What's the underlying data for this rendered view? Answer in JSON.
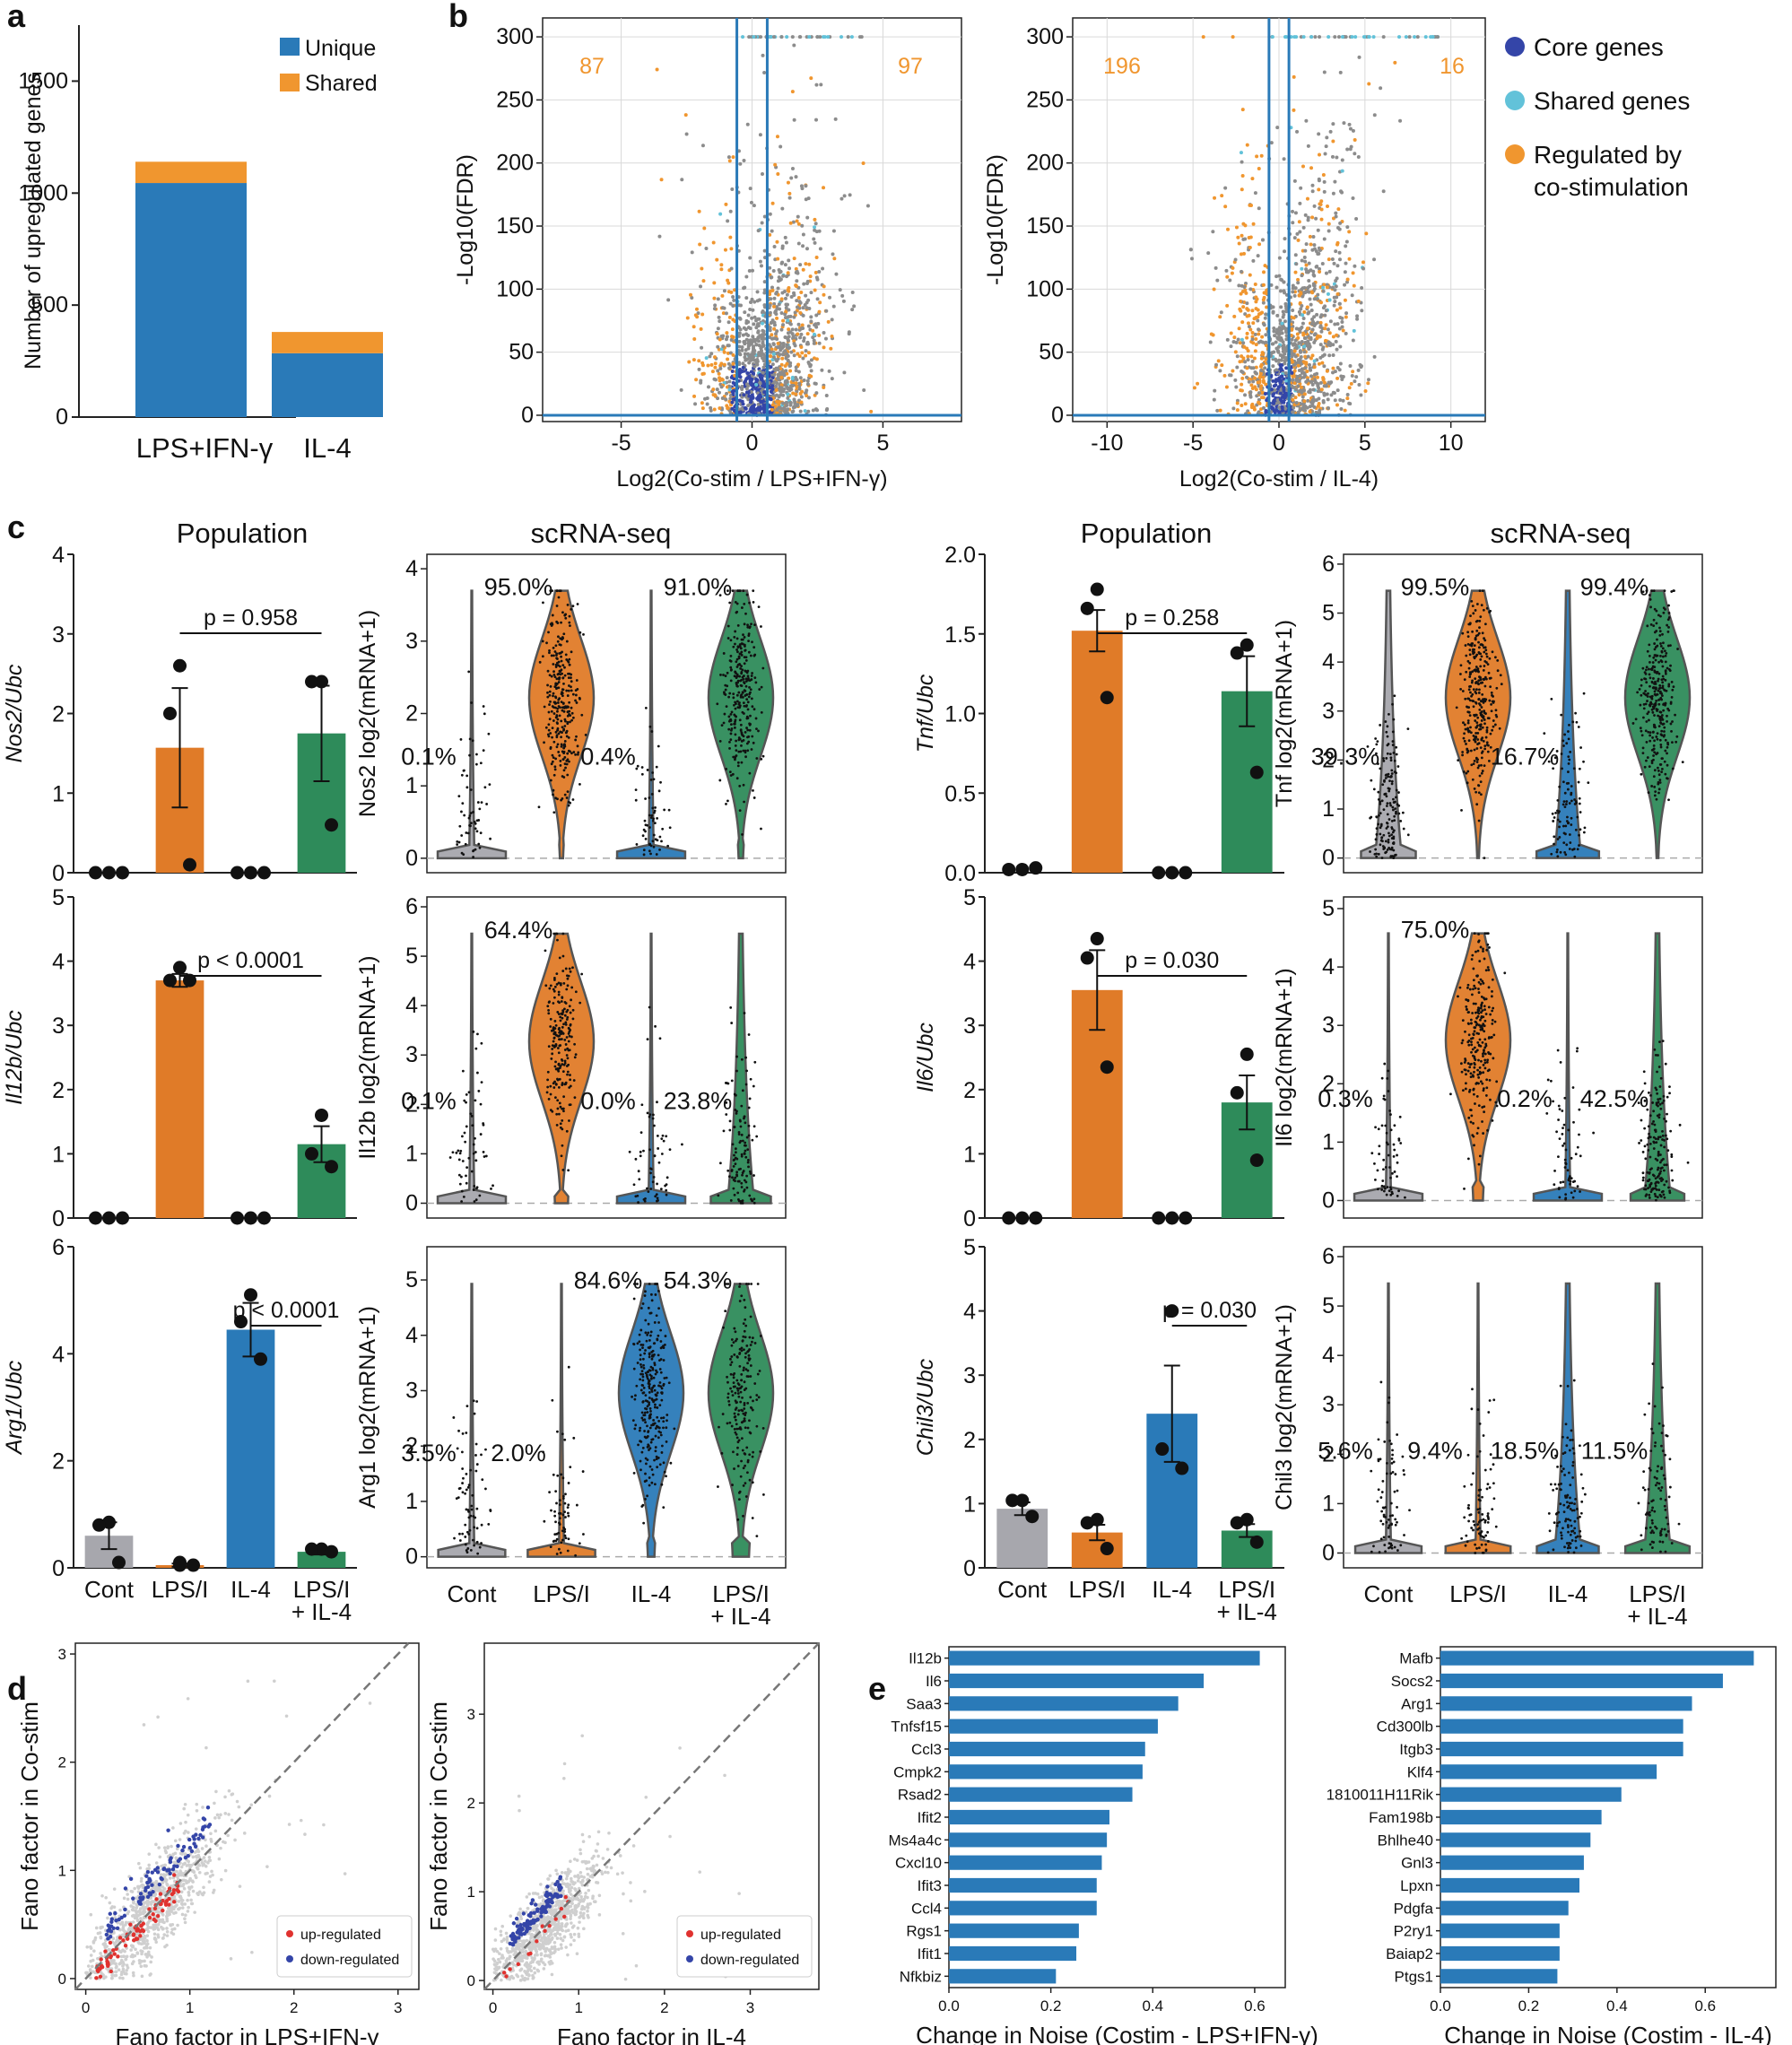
{
  "panel_labels": [
    "a",
    "b",
    "c",
    "d",
    "e"
  ],
  "colors": {
    "blue": "#2a7ab8",
    "orange": "#f0962f",
    "bar_orange": "#e07b28",
    "green": "#2e8b5a",
    "gray": "#a7a7ad",
    "teal": "#62c2d9",
    "navy": "#3445a8",
    "red": "#e0322f",
    "line_blue": "#2a7ab8"
  },
  "chart_data": [
    {
      "id": "a",
      "type": "bar",
      "stacked": true,
      "categories": [
        "LPS+IFN-γ",
        "IL-4"
      ],
      "series": [
        {
          "name": "Unique",
          "values": [
            1045,
            285
          ]
        },
        {
          "name": "Shared",
          "values": [
            95,
            95
          ]
        }
      ],
      "ylabel": "Number of upregulated genes",
      "ylim": [
        0,
        1750
      ],
      "yticks": [
        "0",
        "500",
        "1000",
        "1500"
      ],
      "legend": [
        "Unique",
        "Shared"
      ]
    },
    {
      "id": "b1",
      "type": "scatter",
      "xlabel": "Log2(Co-stim / LPS+IFN-γ)",
      "ylabel": "-Log10(FDR)",
      "xlim": [
        -8,
        8
      ],
      "ylim": [
        -5,
        315
      ],
      "xticks": [
        "-5",
        "0",
        "5"
      ],
      "yticks": [
        "0",
        "50",
        "100",
        "150",
        "200",
        "250",
        "300"
      ],
      "count_left": "87",
      "count_right": "97",
      "thresholds": [
        -0.58,
        0.58
      ]
    },
    {
      "id": "b2",
      "type": "scatter",
      "xlabel": "Log2(Co-stim / IL-4)",
      "ylabel": "-Log10(FDR)",
      "xlim": [
        -12,
        12
      ],
      "ylim": [
        -5,
        315
      ],
      "xticks": [
        "-10",
        "-5",
        "0",
        "5",
        "10"
      ],
      "yticks": [
        "0",
        "50",
        "100",
        "150",
        "200",
        "250",
        "300"
      ],
      "count_left": "196",
      "count_right": "16",
      "legend": [
        "Core genes",
        "Shared genes",
        "Regulated by",
        "co-stimulation"
      ]
    },
    {
      "id": "c",
      "type": "bar",
      "titles": [
        "Population",
        "scRNA-seq",
        "Population",
        "scRNA-seq"
      ],
      "categories": [
        "Cont",
        "LPS/I",
        "IL-4",
        "LPS/I",
        "+ IL-4"
      ],
      "population": [
        {
          "gene": "Nos2",
          "label": "Nos2/Ubc",
          "means": [
            0,
            1.57,
            0,
            1.75
          ],
          "sem": [
            0,
            0.75,
            0,
            0.6
          ],
          "points": [
            [
              0,
              0,
              0
            ],
            [
              2.6,
              2.0,
              0.1
            ],
            [
              0,
              0,
              0
            ],
            [
              2.4,
              2.4,
              0.6
            ]
          ],
          "ylim": [
            0,
            4
          ],
          "yticks": [
            "0",
            "1",
            "2",
            "3",
            "4"
          ],
          "pval": "p = 0.958",
          "pair": [
            1,
            3
          ]
        },
        {
          "gene": "Il12b",
          "label": "Il12b/Ubc",
          "means": [
            0,
            3.7,
            0,
            1.15
          ],
          "sem": [
            0,
            0.1,
            0,
            0.28
          ],
          "points": [
            [
              0,
              0,
              0
            ],
            [
              3.9,
              3.7,
              3.7
            ],
            [
              0,
              0,
              0
            ],
            [
              1.6,
              1.0,
              0.8
            ]
          ],
          "ylim": [
            0,
            5
          ],
          "yticks": [
            "0",
            "1",
            "2",
            "3",
            "4",
            "5"
          ],
          "pval": "p < 0.0001",
          "pair": [
            1,
            3
          ]
        },
        {
          "gene": "Arg1",
          "label": "Arg1/Ubc",
          "means": [
            0.6,
            0.05,
            4.45,
            0.3
          ],
          "sem": [
            0.25,
            0.03,
            0.5,
            0.05
          ],
          "points": [
            [
              0.85,
              0.8,
              0.1
            ],
            [
              0.1,
              0.05,
              0.05
            ],
            [
              5.1,
              4.6,
              3.9
            ],
            [
              0.35,
              0.35,
              0.3
            ]
          ],
          "ylim": [
            0,
            6
          ],
          "yticks": [
            "0",
            "2",
            "4",
            "6"
          ],
          "pval": "p < 0.0001",
          "pair": [
            2,
            3
          ]
        },
        {
          "gene": "Tnf",
          "label": "Tnf/Ubc",
          "means": [
            0,
            1.52,
            0,
            1.14
          ],
          "sem": [
            0,
            0.13,
            0,
            0.22
          ],
          "points": [
            [
              0.02,
              0.02,
              0.03
            ],
            [
              1.78,
              1.66,
              1.1
            ],
            [
              0,
              0,
              0
            ],
            [
              1.43,
              1.38,
              0.63
            ]
          ],
          "ylim": [
            0,
            2
          ],
          "yticks": [
            "0.0",
            "0.5",
            "1.0",
            "1.5",
            "2.0"
          ],
          "pval": "p = 0.258",
          "pair": [
            1,
            3
          ]
        },
        {
          "gene": "Il6",
          "label": "Il6/Ubc",
          "means": [
            0,
            3.55,
            0,
            1.8
          ],
          "sem": [
            0,
            0.62,
            0,
            0.42
          ],
          "points": [
            [
              0,
              0,
              0
            ],
            [
              4.35,
              4.05,
              2.35
            ],
            [
              0,
              0,
              0
            ],
            [
              2.55,
              1.95,
              0.9
            ]
          ],
          "ylim": [
            0,
            5
          ],
          "yticks": [
            "0",
            "1",
            "2",
            "3",
            "4",
            "5"
          ],
          "pval": "p = 0.030",
          "pair": [
            1,
            3
          ]
        },
        {
          "gene": "Chil3",
          "label": "Chil3/Ubc",
          "means": [
            0.92,
            0.55,
            2.4,
            0.58
          ],
          "sem": [
            0.1,
            0.12,
            0.75,
            0.1
          ],
          "points": [
            [
              1.05,
              1.05,
              0.8
            ],
            [
              0.75,
              0.7,
              0.3
            ],
            [
              4.0,
              1.85,
              1.55
            ],
            [
              0.75,
              0.7,
              0.4
            ]
          ],
          "ylim": [
            0,
            5
          ],
          "yticks": [
            "0",
            "1",
            "2",
            "3",
            "4",
            "5"
          ],
          "pval": "p = 0.030",
          "pair": [
            2,
            3
          ]
        }
      ],
      "violins": [
        {
          "gene": "Nos2",
          "label": "Nos2 log2(mRNA+1)",
          "pcts": [
            "0.1%",
            "95.0%",
            "0.4%",
            "91.0%"
          ],
          "ylim": [
            -0.2,
            4.2
          ],
          "yticks": [
            "0",
            "1",
            "2",
            "3",
            "4"
          ]
        },
        {
          "gene": "Il12b",
          "label": "Il12b log2(mRNA+1)",
          "pcts": [
            "0.1%",
            "64.4%",
            "0.0%",
            "23.8%"
          ],
          "ylim": [
            -0.3,
            6.2
          ],
          "yticks": [
            "0",
            "1",
            "2",
            "3",
            "4",
            "5",
            "6"
          ]
        },
        {
          "gene": "Arg1",
          "label": "Arg1 log2(mRNA+1)",
          "pcts": [
            "3.5%",
            "2.0%",
            "84.6%",
            "54.3%"
          ],
          "ylim": [
            -0.2,
            5.6
          ],
          "yticks": [
            "0",
            "1",
            "2",
            "3",
            "4",
            "5"
          ]
        },
        {
          "gene": "Tnf",
          "label": "Tnf log2(mRNA+1)",
          "pcts": [
            "39.3%",
            "99.5%",
            "16.7%",
            "99.4%"
          ],
          "ylim": [
            -0.3,
            6.2
          ],
          "yticks": [
            "0",
            "1",
            "2",
            "3",
            "4",
            "5",
            "6"
          ]
        },
        {
          "gene": "Il6",
          "label": "Il6 log2(mRNA+1)",
          "pcts": [
            "0.3%",
            "75.0%",
            "0.2%",
            "42.5%"
          ],
          "ylim": [
            -0.3,
            5.2
          ],
          "yticks": [
            "0",
            "1",
            "2",
            "3",
            "4",
            "5"
          ]
        },
        {
          "gene": "Chil3",
          "label": "Chil3 log2(mRNA+1)",
          "pcts": [
            "5.6%",
            "9.4%",
            "18.5%",
            "11.5%"
          ],
          "ylim": [
            -0.3,
            6.2
          ],
          "yticks": [
            "0",
            "1",
            "2",
            "3",
            "4",
            "5",
            "6"
          ]
        }
      ]
    },
    {
      "id": "d1",
      "type": "scatter",
      "xlabel": "Fano factor in LPS+IFN-γ",
      "ylabel": "Fano factor in Co-stim",
      "xlim": [
        -0.1,
        3.2
      ],
      "ylim": [
        -0.1,
        3.1
      ],
      "xticks": [
        "0",
        "1",
        "2",
        "3"
      ],
      "yticks": [
        "0",
        "1",
        "2",
        "3"
      ],
      "legend": [
        "up-regulated",
        "down-regulated"
      ]
    },
    {
      "id": "d2",
      "type": "scatter",
      "xlabel": "Fano factor in IL-4",
      "ylabel": "Fano factor in Co-stim",
      "xlim": [
        -0.1,
        3.8
      ],
      "ylim": [
        -0.1,
        3.8
      ],
      "xticks": [
        "0",
        "1",
        "2",
        "3"
      ],
      "yticks": [
        "0",
        "1",
        "2",
        "3"
      ],
      "legend": [
        "up-regulated",
        "down-regulated"
      ]
    },
    {
      "id": "e1",
      "type": "bar",
      "orientation": "horizontal",
      "xlabel": "Change in Noise (Costim - LPS+IFN-γ)",
      "categories": [
        "Il12b",
        "Il6",
        "Saa3",
        "Tnfsf15",
        "Ccl3",
        "Cmpk2",
        "Rsad2",
        "Ifit2",
        "Ms4a4c",
        "Cxcl10",
        "Ifit3",
        "Ccl4",
        "Rgs1",
        "Ifit1",
        "Nfkbiz"
      ],
      "values": [
        0.61,
        0.5,
        0.45,
        0.41,
        0.385,
        0.38,
        0.36,
        0.315,
        0.31,
        0.3,
        0.29,
        0.29,
        0.255,
        0.25,
        0.21
      ],
      "xlim": [
        0,
        0.66
      ],
      "xticks": [
        "0.0",
        "0.2",
        "0.4",
        "0.6"
      ]
    },
    {
      "id": "e2",
      "type": "bar",
      "orientation": "horizontal",
      "xlabel": "Change in Noise (Costim - IL-4)",
      "categories": [
        "Mafb",
        "Socs2",
        "Arg1",
        "Cd300lb",
        "Itgb3",
        "Klf4",
        "1810011H11Rik",
        "Fam198b",
        "Bhlhe40",
        "Gnl3",
        "Lpxn",
        "Pdgfa",
        "P2ry1",
        "Baiap2",
        "Ptgs1"
      ],
      "values": [
        0.71,
        0.64,
        0.57,
        0.55,
        0.55,
        0.49,
        0.41,
        0.365,
        0.34,
        0.325,
        0.315,
        0.29,
        0.27,
        0.27,
        0.265
      ],
      "xlim": [
        0,
        0.76
      ],
      "xticks": [
        "0.0",
        "0.2",
        "0.4",
        "0.6"
      ]
    }
  ]
}
